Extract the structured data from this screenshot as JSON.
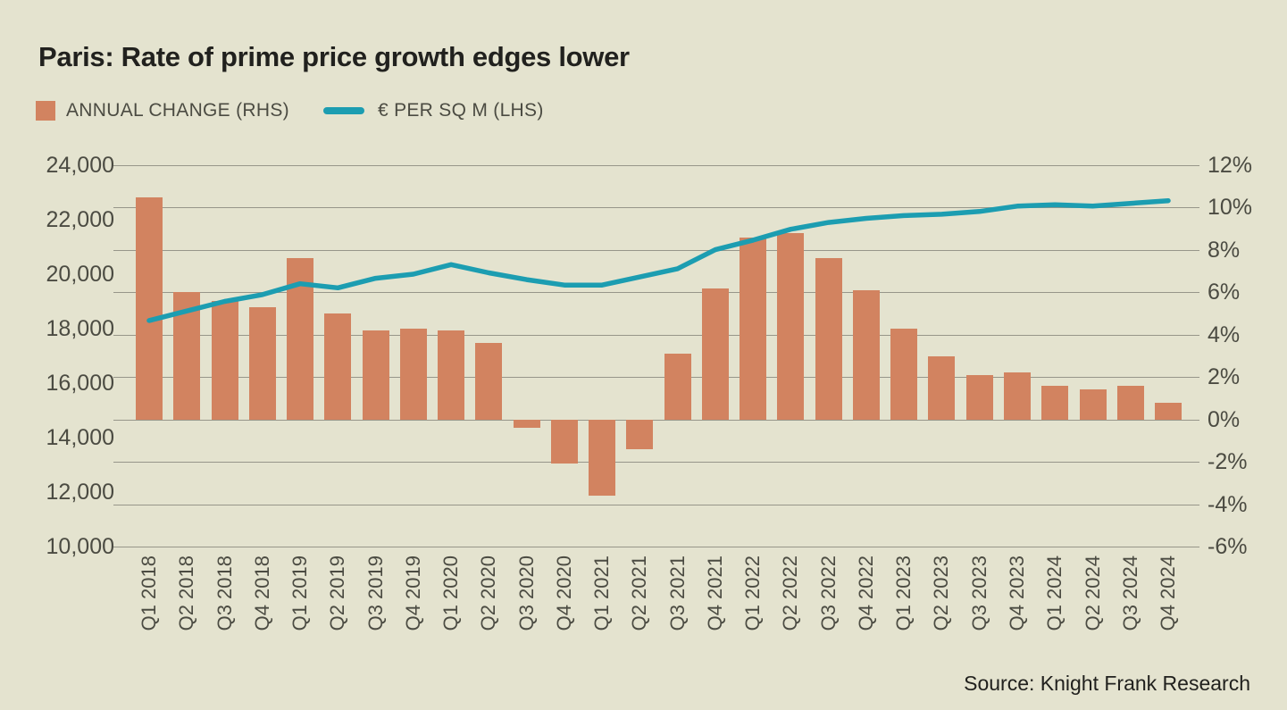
{
  "header": {
    "title": "Paris: Rate of prime price growth edges lower"
  },
  "legend": {
    "bar_label": "ANNUAL CHANGE (RHS)",
    "line_label": "€ PER SQ M (LHS)"
  },
  "footer": {
    "source": "Source: Knight Frank Research"
  },
  "colors": {
    "background": "#E4E3CF",
    "bar": "#D28360",
    "line": "#1C9DB1",
    "grid": "#97968A",
    "title_text": "#21211E",
    "axis_text": "#4B4B42"
  },
  "chart_data": {
    "type": "bar",
    "subtype": "combo-bar-line",
    "title": "Paris: Rate of prime price growth edges lower",
    "categories": [
      "Q1 2018",
      "Q2 2018",
      "Q3 2018",
      "Q4 2018",
      "Q1 2019",
      "Q2 2019",
      "Q3 2019",
      "Q4 2019",
      "Q1 2020",
      "Q2 2020",
      "Q3 2020",
      "Q4 2020",
      "Q1 2021",
      "Q2 2021",
      "Q3 2021",
      "Q4 2021",
      "Q1 2022",
      "Q2 2022",
      "Q3 2022",
      "Q4 2022",
      "Q1 2023",
      "Q2 2023",
      "Q3 2023",
      "Q4 2023",
      "Q1 2024",
      "Q2 2024",
      "Q3 2024",
      "Q4 2024"
    ],
    "series": [
      {
        "name": "ANNUAL CHANGE (RHS)",
        "type": "bar",
        "axis": "right",
        "unit": "%",
        "values": [
          10.5,
          6.0,
          5.6,
          5.3,
          7.6,
          5.0,
          4.2,
          4.3,
          4.2,
          3.6,
          -0.4,
          -2.1,
          -3.6,
          -1.4,
          3.1,
          6.2,
          8.6,
          8.8,
          7.6,
          6.1,
          4.3,
          3.0,
          2.1,
          2.2,
          1.6,
          1.4,
          1.6,
          0.8
        ]
      },
      {
        "name": "€ PER SQ M (LHS)",
        "type": "line",
        "axis": "left",
        "unit": "EUR per sq m",
        "values": [
          18300,
          18650,
          19000,
          19250,
          19650,
          19500,
          19850,
          20000,
          20350,
          20050,
          19800,
          19600,
          19600,
          19900,
          20200,
          20900,
          21250,
          21650,
          21900,
          22050,
          22150,
          22200,
          22300,
          22500,
          22550,
          22500,
          22600,
          22700
        ]
      }
    ],
    "left_axis": {
      "label": "€ PER SQ M",
      "min": 10000,
      "max": 24000,
      "ticks": [
        "24,000",
        "22,000",
        "20,000",
        "18,000",
        "16,000",
        "14,000",
        "12,000",
        "10,000"
      ]
    },
    "right_axis": {
      "label": "ANNUAL CHANGE",
      "min": -6,
      "max": 12,
      "ticks": [
        "12%",
        "10%",
        "8%",
        "6%",
        "4%",
        "2%",
        "0%",
        "-2%",
        "-4%",
        "-6%"
      ]
    },
    "grid": "horizontal",
    "legend_position": "top-left"
  }
}
